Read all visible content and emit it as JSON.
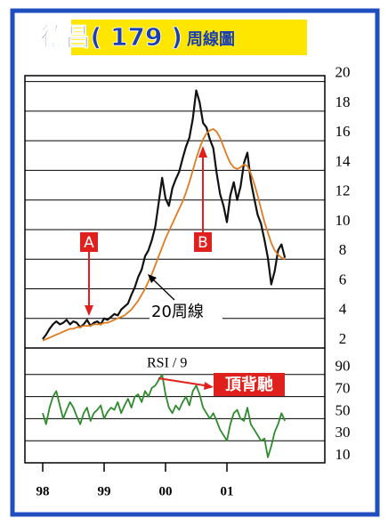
{
  "chart_data": {
    "type": "line",
    "title": "德昌( 179 )",
    "subtitle": "周線圖",
    "categories": [
      "98",
      null,
      null,
      null,
      null,
      null,
      null,
      null,
      null,
      null,
      null,
      null,
      null,
      null,
      null,
      null,
      null,
      null,
      "99",
      null,
      null,
      null,
      null,
      null,
      null,
      null,
      null,
      null,
      null,
      null,
      null,
      null,
      null,
      null,
      null,
      null,
      "00",
      null,
      null,
      null,
      null,
      null,
      null,
      null,
      null,
      null,
      null,
      null,
      null,
      null,
      null,
      null,
      null,
      null,
      "01",
      null,
      null,
      null,
      null,
      null,
      null,
      null,
      null,
      null,
      null,
      null,
      null,
      null,
      null,
      null,
      null,
      null
    ],
    "series": [
      {
        "color": "#111111",
        "values": [
          2.6,
          2.9,
          3.3,
          3.6,
          3.8,
          3.6,
          3.7,
          3.9,
          3.6,
          3.8,
          3.7,
          3.4,
          3.6,
          3.9,
          3.5,
          3.7,
          3.8,
          3.6,
          4.0,
          3.9,
          4.1,
          4.3,
          4.2,
          4.6,
          4.8,
          5.0,
          5.6,
          6.1,
          6.8,
          7.3,
          8.2,
          8.6,
          9.3,
          10.2,
          11.8,
          13.5,
          12.1,
          11.6,
          12.8,
          13.4,
          13.9,
          14.8,
          15.6,
          16.2,
          17.5,
          19.4,
          18.6,
          17.2,
          16.9,
          16.1,
          15.5,
          13.8,
          12.4,
          11.6,
          10.5,
          12.3,
          13.2,
          12.0,
          12.9,
          14.5,
          15.2,
          13.3,
          12.1,
          11.0,
          10.4,
          9.3,
          8.1,
          6.3,
          7.2,
          8.6,
          9.0,
          8.1
        ]
      },
      {
        "color": "#e07b20",
        "values": [
          2.5,
          2.6,
          2.7,
          2.8,
          2.9,
          3.0,
          3.1,
          3.2,
          3.3,
          3.3,
          3.4,
          3.4,
          3.5,
          3.5,
          3.5,
          3.6,
          3.6,
          3.6,
          3.7,
          3.7,
          3.8,
          3.9,
          4.0,
          4.1,
          4.2,
          4.4,
          4.6,
          4.9,
          5.2,
          5.6,
          6.0,
          6.5,
          7.0,
          7.6,
          8.2,
          8.8,
          9.4,
          9.9,
          10.4,
          10.9,
          11.4,
          11.9,
          12.5,
          13.2,
          14.0,
          14.8,
          15.5,
          16.1,
          16.5,
          16.7,
          16.8,
          16.6,
          16.2,
          15.6,
          15.0,
          14.5,
          14.2,
          14.1,
          14.2,
          14.4,
          14.3,
          13.8,
          13.1,
          12.3,
          11.4,
          10.5,
          9.8,
          9.1,
          8.6,
          8.3,
          8.1,
          8.0
        ]
      },
      {
        "color": "#2e8b2e",
        "axis": "y2",
        "values": [
          55,
          45,
          60,
          70,
          75,
          62,
          50,
          58,
          65,
          60,
          52,
          45,
          55,
          60,
          48,
          55,
          58,
          62,
          50,
          56,
          60,
          58,
          65,
          55,
          62,
          68,
          60,
          70,
          72,
          65,
          75,
          70,
          78,
          80,
          85,
          90,
          72,
          60,
          55,
          62,
          58,
          65,
          70,
          62,
          75,
          80,
          72,
          60,
          55,
          50,
          55,
          48,
          40,
          35,
          30,
          45,
          55,
          58,
          50,
          48,
          60,
          45,
          40,
          35,
          30,
          32,
          15,
          25,
          38,
          45,
          55,
          48
        ]
      }
    ],
    "ylim": [
      2,
      20.4
    ],
    "yticks": [
      2,
      4,
      6,
      8,
      10,
      12,
      14,
      16,
      18,
      20
    ],
    "y2lim": [
      10,
      114
    ],
    "y2ticks": [
      10,
      30,
      50,
      70,
      90
    ],
    "grid": true,
    "annotations": [
      "A",
      "B",
      "20周線",
      "RSI / 9",
      "頂背馳"
    ]
  }
}
